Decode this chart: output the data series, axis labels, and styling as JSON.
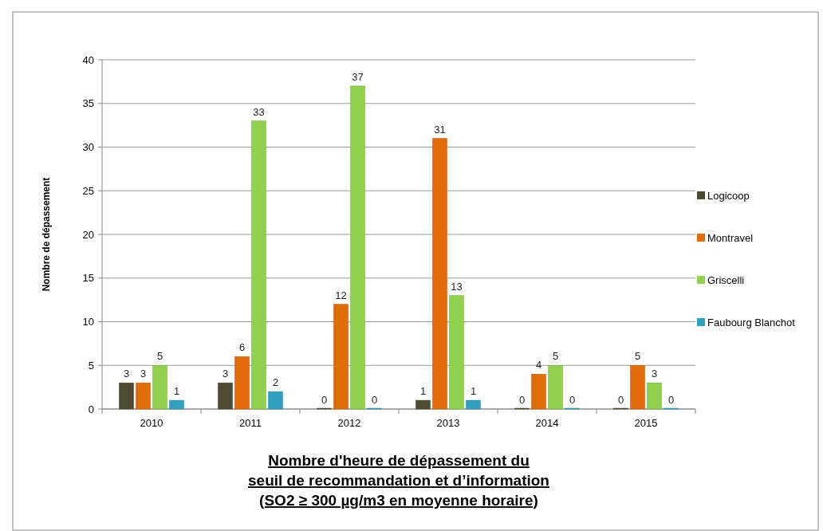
{
  "chart_data": {
    "type": "bar",
    "ylabel": "Nombre de dépassement",
    "xlabel": "Nombre d'heure de dépassement du\nseuil de recommandation et d’information\n(SO2 ≥ 300 µg/m3 en moyenne horaire)",
    "categories": [
      "2010",
      "2011",
      "2012",
      "2013",
      "2014",
      "2015"
    ],
    "series": [
      {
        "name": "Logicoop",
        "color": "#4f4a32",
        "values": [
          3,
          3,
          0,
          1,
          0,
          0
        ]
      },
      {
        "name": "Montravel",
        "color": "#e36c0a",
        "values": [
          3,
          6,
          12,
          31,
          4,
          5
        ]
      },
      {
        "name": "Griscelli",
        "color": "#92d050",
        "values": [
          5,
          33,
          37,
          13,
          5,
          3
        ]
      },
      {
        "name": "Faubourg Blanchot",
        "color": "#31a0c0",
        "values": [
          1,
          2,
          0,
          1,
          0,
          0
        ]
      }
    ],
    "ylim": [
      0,
      40
    ],
    "yticks": [
      0,
      5,
      10,
      15,
      20,
      25,
      30,
      35,
      40
    ],
    "grid": "y",
    "legend": "right",
    "data_labels": true
  }
}
